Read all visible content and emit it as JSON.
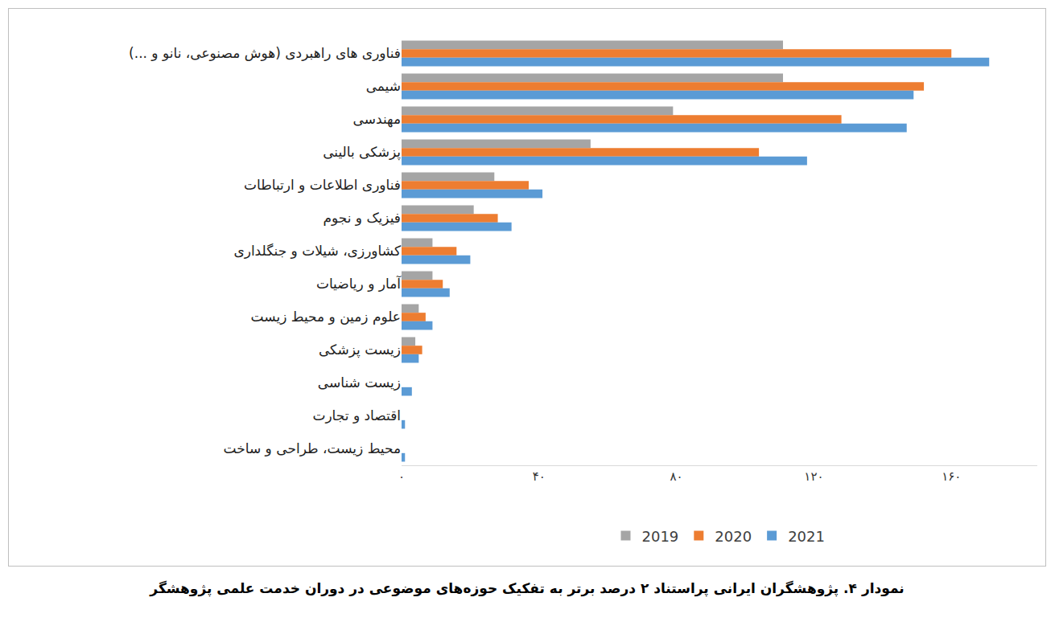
{
  "chart_data": {
    "type": "bar",
    "orientation": "horizontal",
    "title": "نمودار ۴. پژوهشگران ایرانی پراستناد ۲ درصد برتر به تفکیک حوزه‌های موضوعی در دوران خدمت علمی پژوهشگر",
    "categories": [
      "فناوری های راهبردی (هوش مصنوعی، نانو و ...)",
      "شیمی",
      "مهندسی",
      "پزشکی بالینی",
      "فناوری اطلاعات و ارتباطات",
      "فیزیک و نجوم",
      "کشاورزی، شیلات و جنگلداری",
      "آمار و ریاضیات",
      "علوم زمین و محیط زیست",
      "زیست پزشکی",
      "زیست شناسی",
      "اقتصاد و تجارت",
      "محیط زیست، طراحی و ساخت"
    ],
    "series": [
      {
        "name": "2019",
        "color": "#a5a5a5",
        "values": [
          111,
          111,
          79,
          55,
          27,
          21,
          9,
          9,
          5,
          4,
          0,
          0,
          0
        ]
      },
      {
        "name": "2020",
        "color": "#ed7d31",
        "values": [
          160,
          152,
          128,
          104,
          37,
          28,
          16,
          12,
          7,
          6,
          0,
          0,
          0
        ]
      },
      {
        "name": "2021",
        "color": "#5b9bd5",
        "values": [
          171,
          149,
          147,
          118,
          41,
          32,
          20,
          14,
          9,
          5,
          3,
          1,
          1
        ]
      }
    ],
    "xlim": [
      0,
      185
    ],
    "xticks": [
      {
        "value": 0,
        "label": "۰"
      },
      {
        "value": 40,
        "label": "۴۰"
      },
      {
        "value": 80,
        "label": "۸۰"
      },
      {
        "value": 120,
        "label": "۱۲۰"
      },
      {
        "value": 160,
        "label": "۱۶۰"
      }
    ],
    "grid": false,
    "legend": "bottom"
  }
}
